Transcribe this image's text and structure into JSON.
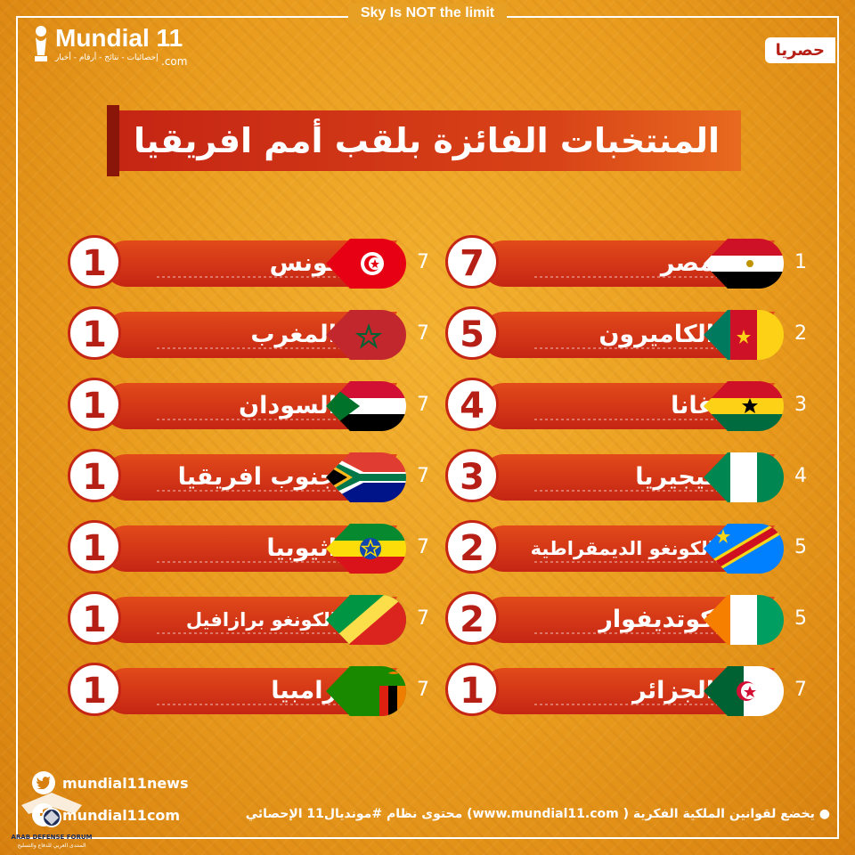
{
  "tagline": "Sky Is NOT the limit",
  "logo": {
    "name": "Mundial 11",
    "tld": ".com",
    "subtitle": "إحصائيات - نتائج - أرقام - أخبار"
  },
  "badge": "حصريا",
  "title": "المنتخبات الفائزة بلقب أمم افريقيا",
  "right_column": [
    {
      "rank": "1",
      "team": "مصر",
      "titles": "7",
      "flag": "egypt"
    },
    {
      "rank": "2",
      "team": "الكاميرون",
      "titles": "5",
      "flag": "cameroon"
    },
    {
      "rank": "3",
      "team": "غانا",
      "titles": "4",
      "flag": "ghana"
    },
    {
      "rank": "4",
      "team": "نيجيريا",
      "titles": "3",
      "flag": "nigeria"
    },
    {
      "rank": "5",
      "team": "الكونغو الديمقراطية",
      "titles": "2",
      "flag": "dr-congo"
    },
    {
      "rank": "5",
      "team": "كوتديفوار",
      "titles": "2",
      "flag": "ivory-coast"
    },
    {
      "rank": "7",
      "team": "الجزائر",
      "titles": "1",
      "flag": "algeria"
    }
  ],
  "left_column": [
    {
      "rank": "7",
      "team": "تونس",
      "titles": "1",
      "flag": "tunisia"
    },
    {
      "rank": "7",
      "team": "المغرب",
      "titles": "1",
      "flag": "morocco"
    },
    {
      "rank": "7",
      "team": "السودان",
      "titles": "1",
      "flag": "sudan"
    },
    {
      "rank": "7",
      "team": "جنوب افريقيا",
      "titles": "1",
      "flag": "south-africa"
    },
    {
      "rank": "7",
      "team": "اثيوبيا",
      "titles": "1",
      "flag": "ethiopia"
    },
    {
      "rank": "7",
      "team": "الكونغو برازافيل",
      "titles": "1",
      "flag": "congo"
    },
    {
      "rank": "7",
      "team": "زامبيا",
      "titles": "1",
      "flag": "zambia"
    }
  ],
  "social": {
    "twitter": "mundial11news",
    "facebook": "mundial11com"
  },
  "footer": "محتوى نظام #مونديال11 الإحصائي (www.mundial11.com ) يخضع لقوانين الملكية الفكرية",
  "watermark": {
    "text": "ARAB DEFENSE FORUM",
    "subtext": "المنتدى العربي للدفاع والتسليح"
  }
}
